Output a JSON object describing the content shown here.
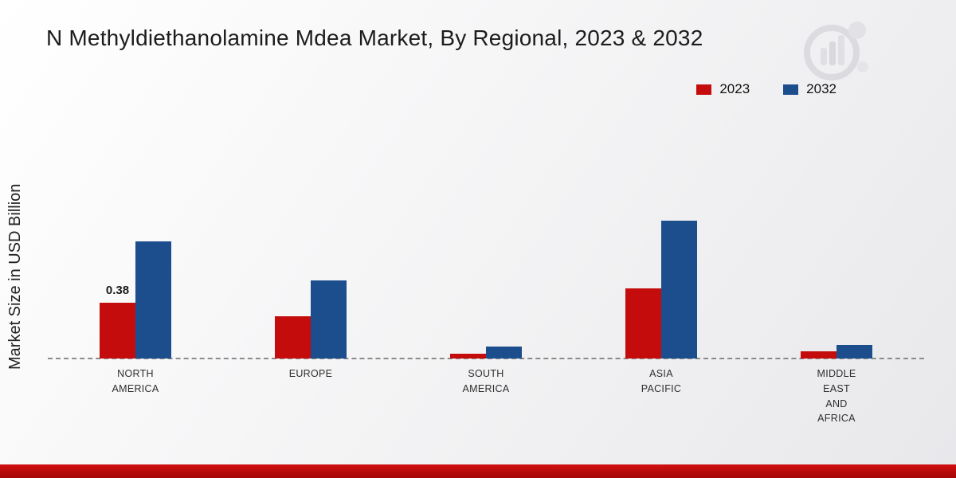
{
  "page": {
    "title": "N Methyldiethanolamine Mdea Market, By Regional, 2023 & 2032",
    "y_axis_label": "Market Size in USD Billion"
  },
  "legend": {
    "position": "top-right",
    "items": [
      {
        "label": "2023",
        "color": "#c40c0c"
      },
      {
        "label": "2032",
        "color": "#1c4e8e"
      }
    ]
  },
  "annotation": {
    "text": "0.38",
    "category_index": 0,
    "series_index": 0
  },
  "chart_data": {
    "type": "bar",
    "categories": [
      "NORTH AMERICA",
      "EUROPE",
      "SOUTH AMERICA",
      "ASIA PACIFIC",
      "MIDDLE EAST AND AFRICA"
    ],
    "series": [
      {
        "name": "2023",
        "color": "#c40c0c",
        "values": [
          0.38,
          0.29,
          0.03,
          0.48,
          0.05
        ]
      },
      {
        "name": "2032",
        "color": "#1c4e8e",
        "values": [
          0.8,
          0.53,
          0.08,
          0.94,
          0.09
        ]
      }
    ],
    "title": "N Methyldiethanolamine Mdea Market, By Regional, 2023 & 2032",
    "xlabel": "",
    "ylabel": "Market Size in USD Billion",
    "ylim": [
      0,
      1.0
    ],
    "grid": false,
    "legend_position": "top-right",
    "baseline_style": "dashed",
    "data_labels": [
      {
        "series": "2023",
        "category": "NORTH AMERICA",
        "value": "0.38"
      }
    ]
  },
  "branding": {
    "watermark_icon": "mrfr-logo",
    "footer_bar_color": "#c00d0d"
  }
}
